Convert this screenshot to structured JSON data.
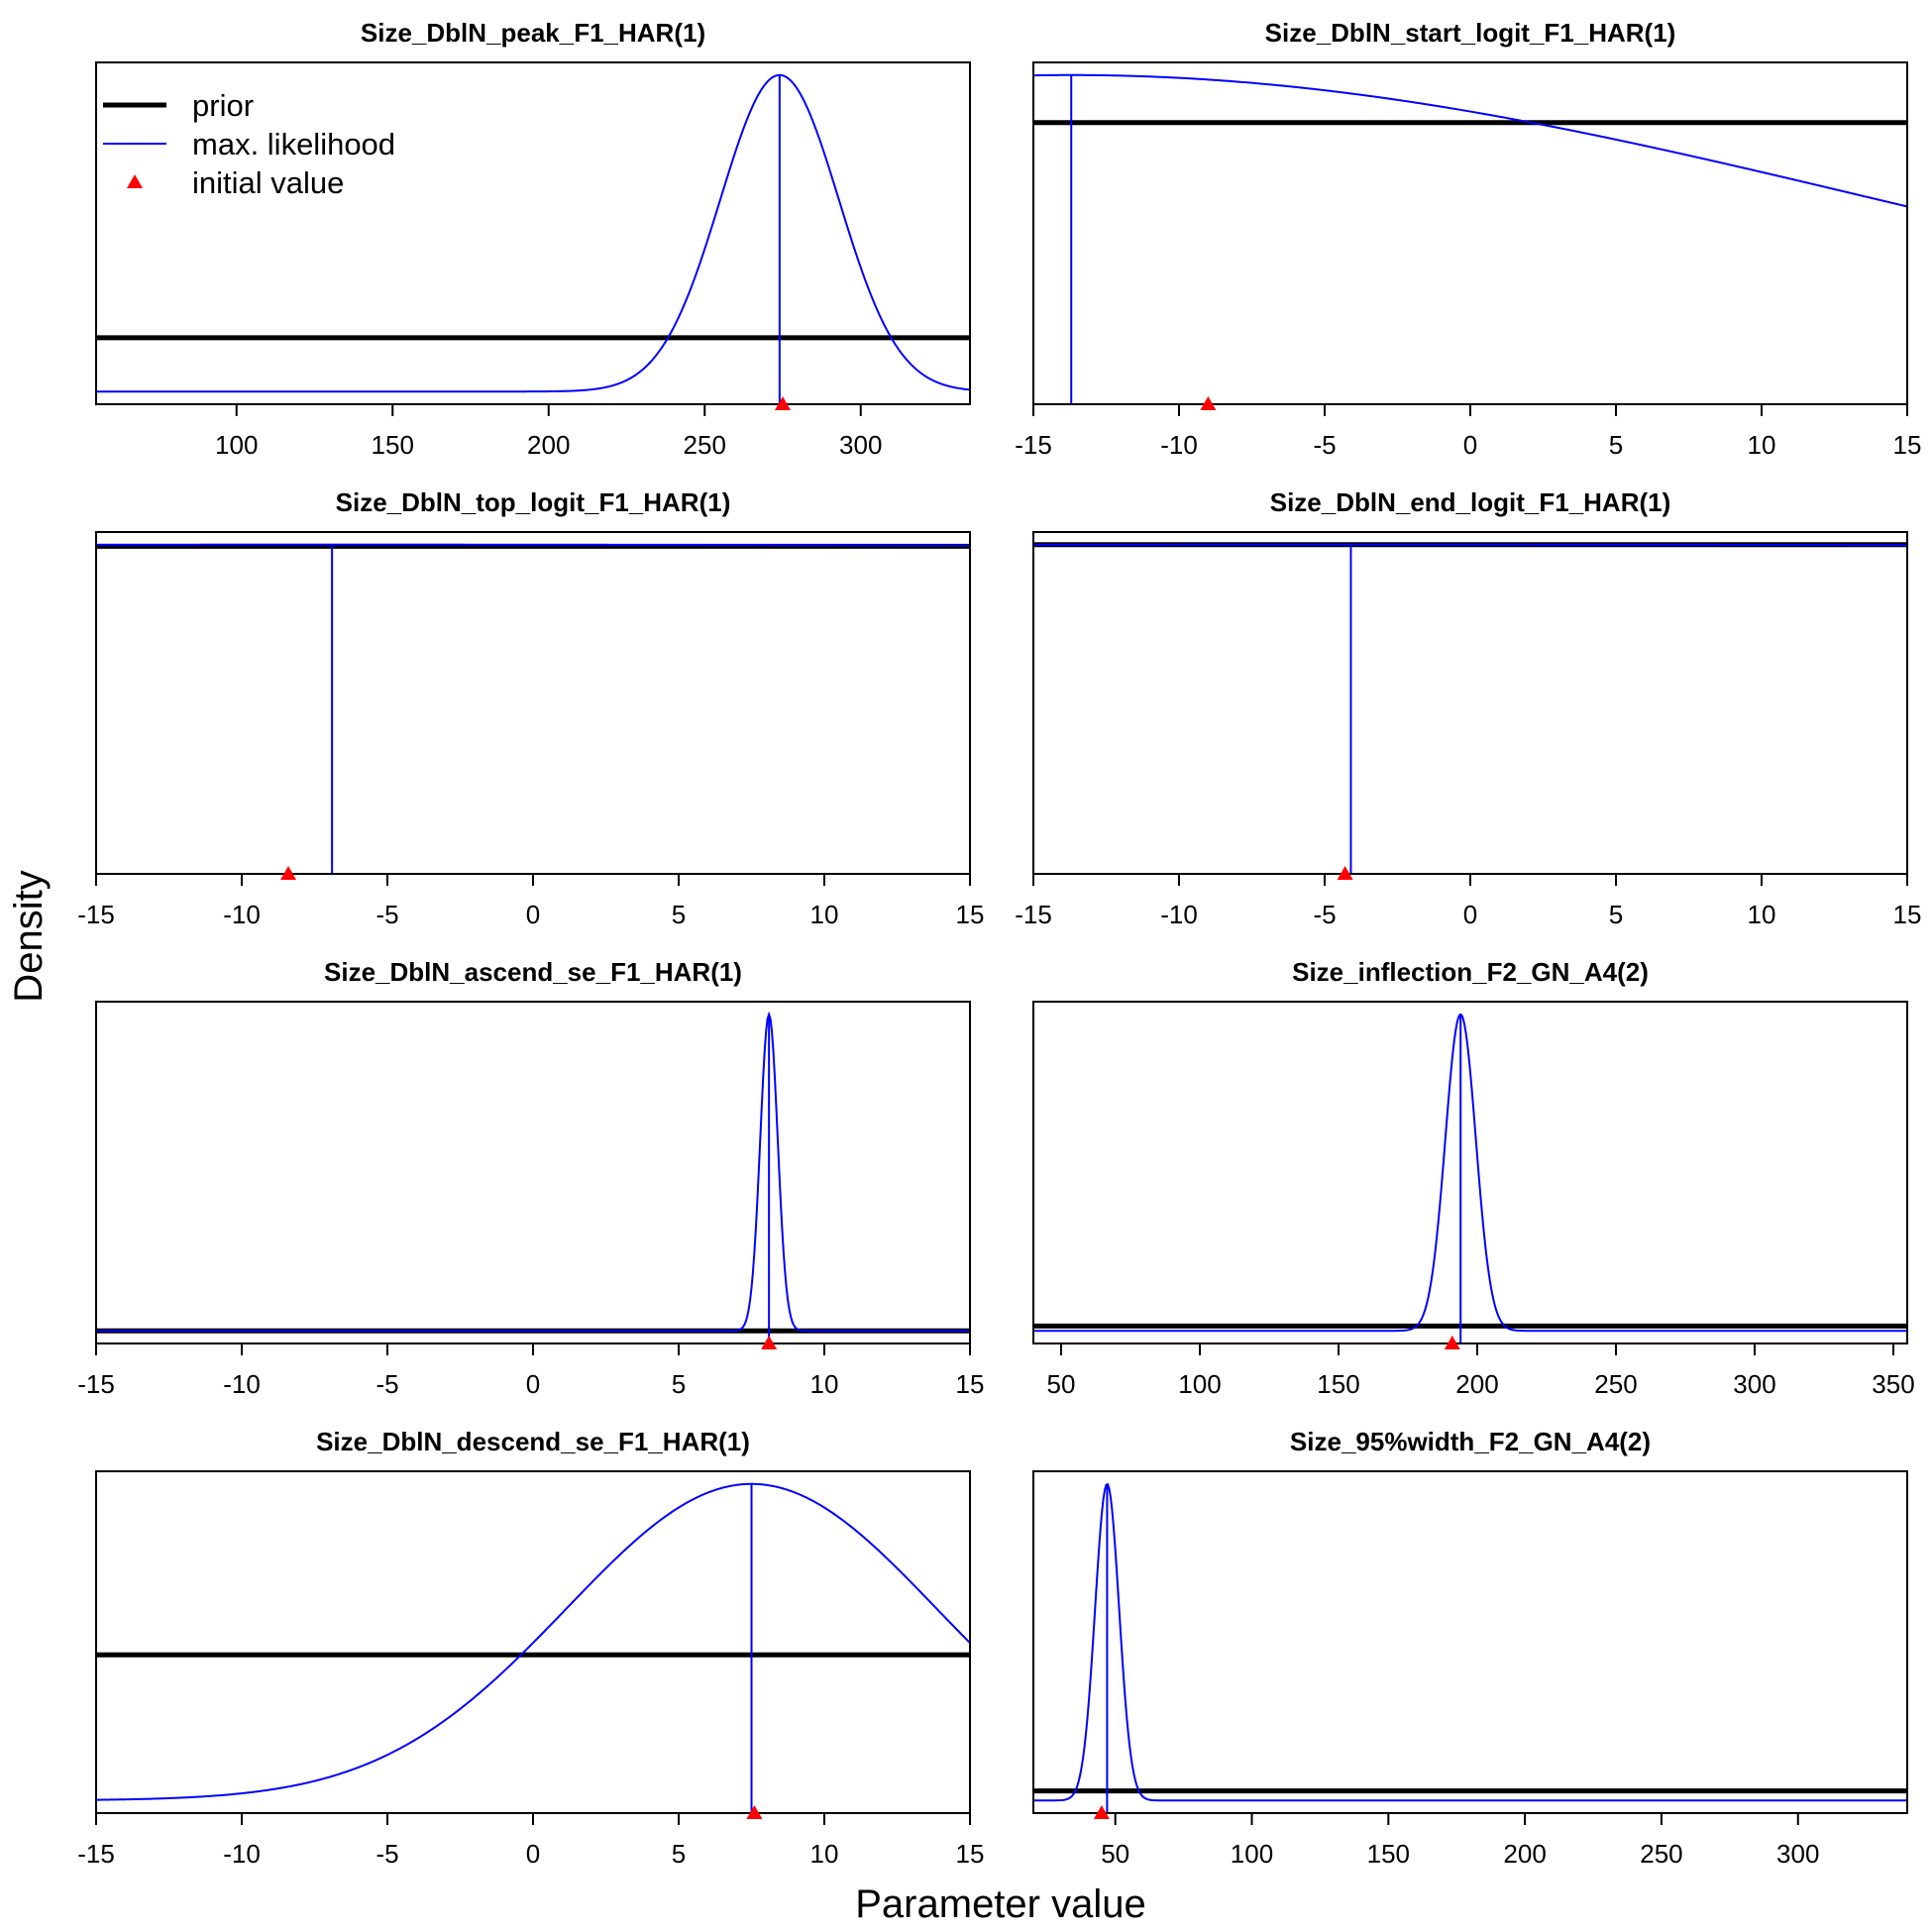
{
  "figure": {
    "xlabel": "Parameter value",
    "ylabel": "Density"
  },
  "legend": {
    "placement": "top-left of first panel",
    "items": [
      {
        "label": "prior",
        "kind": "line",
        "color": "#000000"
      },
      {
        "label": "max. likelihood",
        "kind": "line",
        "color": "#0000FF"
      },
      {
        "label": "initial value",
        "kind": "triangle",
        "color": "#FF0000"
      }
    ]
  },
  "colors": {
    "prior": "#000000",
    "mle": "#0000FF",
    "initial": "#FF0000"
  },
  "chart_data": [
    {
      "type": "line",
      "title": "Size_DblN_peak_F1_HAR(1)",
      "xlim": [
        55,
        335
      ],
      "ticks": [
        100,
        150,
        200,
        250,
        300
      ],
      "tick_labels": [
        "100",
        "150",
        "200",
        "250",
        "300"
      ],
      "prior_level": 0.17,
      "mle": {
        "mean": 274,
        "sd": 19,
        "peak": 1.0
      },
      "mle_value": 274,
      "initial_value": 275
    },
    {
      "type": "line",
      "title": "Size_DblN_start_logit_F1_HAR(1)",
      "xlim": [
        -15,
        15
      ],
      "ticks": [
        -15,
        -10,
        -5,
        0,
        5,
        10,
        15
      ],
      "tick_labels": [
        "-15",
        "-10",
        "-5",
        "0",
        "5",
        "10",
        "15"
      ],
      "prior_level": 0.85,
      "mle": {
        "mean": -13.7,
        "sd": 27.7,
        "peak": 1.0
      },
      "mle_value": -13.7,
      "initial_value": -9
    },
    {
      "type": "line",
      "title": "Size_DblN_top_logit_F1_HAR(1)",
      "xlim": [
        -15,
        15
      ],
      "ticks": [
        -15,
        -10,
        -5,
        0,
        5,
        10,
        15
      ],
      "tick_labels": [
        "-15",
        "-10",
        "-5",
        "0",
        "5",
        "10",
        "15"
      ],
      "prior_level": 0.995,
      "mle": {
        "mean": -6.9,
        "sd": 300,
        "peak": 1.0
      },
      "mle_value": -6.9,
      "initial_value": -8.4
    },
    {
      "type": "line",
      "title": "Size_DblN_end_logit_F1_HAR(1)",
      "xlim": [
        -15,
        15
      ],
      "ticks": [
        -15,
        -10,
        -5,
        0,
        5,
        10,
        15
      ],
      "tick_labels": [
        "-15",
        "-10",
        "-5",
        "0",
        "5",
        "10",
        "15"
      ],
      "prior_level": 1.0,
      "mle": {
        "mean": -4.1,
        "sd": 400,
        "peak": 1.0
      },
      "mle_value": -4.1,
      "initial_value": -4.3
    },
    {
      "type": "line",
      "title": "Size_DblN_ascend_se_F1_HAR(1)",
      "xlim": [
        -15,
        15
      ],
      "ticks": [
        -15,
        -10,
        -5,
        0,
        5,
        10,
        15
      ],
      "tick_labels": [
        "-15",
        "-10",
        "-5",
        "0",
        "5",
        "10",
        "15"
      ],
      "prior_level": 0.0,
      "mle": {
        "mean": 8.1,
        "sd": 0.3,
        "peak": 1.0
      },
      "mle_value": 8.1,
      "initial_value": 8.1
    },
    {
      "type": "line",
      "title": "Size_inflection_F2_GN_A4(2)",
      "xlim": [
        40,
        355
      ],
      "ticks": [
        50,
        100,
        150,
        200,
        250,
        300,
        350
      ],
      "tick_labels": [
        "50",
        "100",
        "150",
        "200",
        "250",
        "300",
        "350"
      ],
      "prior_level": 0.015,
      "mle": {
        "mean": 194,
        "sd": 5.5,
        "peak": 1.0
      },
      "mle_value": 194,
      "initial_value": 191
    },
    {
      "type": "line",
      "title": "Size_DblN_descend_se_F1_HAR(1)",
      "xlim": [
        -15,
        15
      ],
      "ticks": [
        -15,
        -10,
        -5,
        0,
        5,
        10,
        15
      ],
      "tick_labels": [
        "-15",
        "-10",
        "-5",
        "0",
        "5",
        "10",
        "15"
      ],
      "prior_level": 0.46,
      "mle": {
        "mean": 7.5,
        "sd": 6.35,
        "peak": 1.0
      },
      "mle_value": 7.5,
      "initial_value": 7.6
    },
    {
      "type": "line",
      "title": "Size_95%width_F2_GN_A4(2)",
      "xlim": [
        20,
        340
      ],
      "ticks": [
        50,
        100,
        150,
        200,
        250,
        300
      ],
      "tick_labels": [
        "50",
        "100",
        "150",
        "200",
        "250",
        "300"
      ],
      "prior_level": 0.03,
      "mle": {
        "mean": 47,
        "sd": 4.4,
        "peak": 1.0
      },
      "mle_value": 47,
      "initial_value": 45
    }
  ]
}
